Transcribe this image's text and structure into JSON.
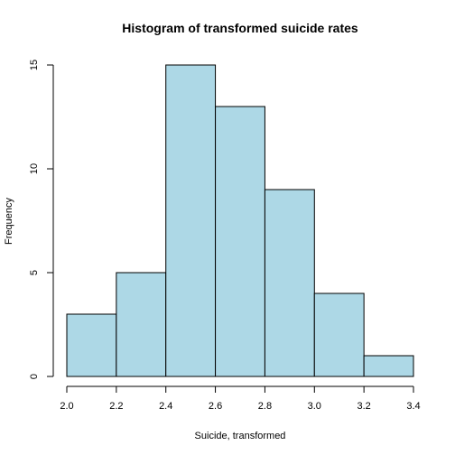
{
  "chart_data": {
    "type": "bar",
    "title": "Histogram of transformed suicide rates",
    "xlabel": "Suicide, transformed",
    "ylabel": "Frequency",
    "bins": [
      {
        "from": 2.0,
        "to": 2.2,
        "count": 3
      },
      {
        "from": 2.2,
        "to": 2.4,
        "count": 5
      },
      {
        "from": 2.4,
        "to": 2.6,
        "count": 15
      },
      {
        "from": 2.6,
        "to": 2.8,
        "count": 13
      },
      {
        "from": 2.8,
        "to": 3.0,
        "count": 9
      },
      {
        "from": 3.0,
        "to": 3.2,
        "count": 4
      },
      {
        "from": 3.2,
        "to": 3.4,
        "count": 1
      }
    ],
    "xlim": [
      2.0,
      3.4
    ],
    "ylim": [
      0,
      15
    ],
    "x_ticks": [
      "2.0",
      "2.2",
      "2.4",
      "2.6",
      "2.8",
      "3.0",
      "3.2",
      "3.4"
    ],
    "y_ticks": [
      "0",
      "5",
      "10",
      "15"
    ],
    "bar_color": "#add8e6",
    "grid": false
  }
}
